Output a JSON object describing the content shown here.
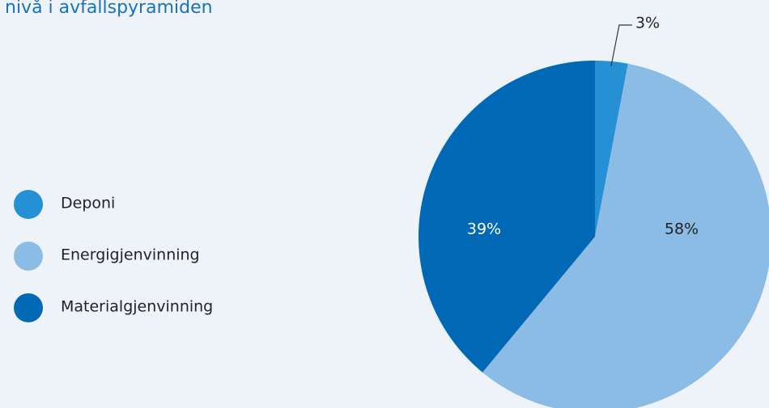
{
  "chart_data": {
    "type": "pie",
    "title": "nivå i avfallspyramiden",
    "categories": [
      "Deponi",
      "Energigjenvinning",
      "Materialgjenvinning"
    ],
    "values": [
      3,
      58,
      39
    ],
    "value_labels": [
      "3%",
      "58%",
      "39%"
    ],
    "colors": [
      "#2590d4",
      "#8bbce6",
      "#0068b5"
    ],
    "legend": "left"
  }
}
